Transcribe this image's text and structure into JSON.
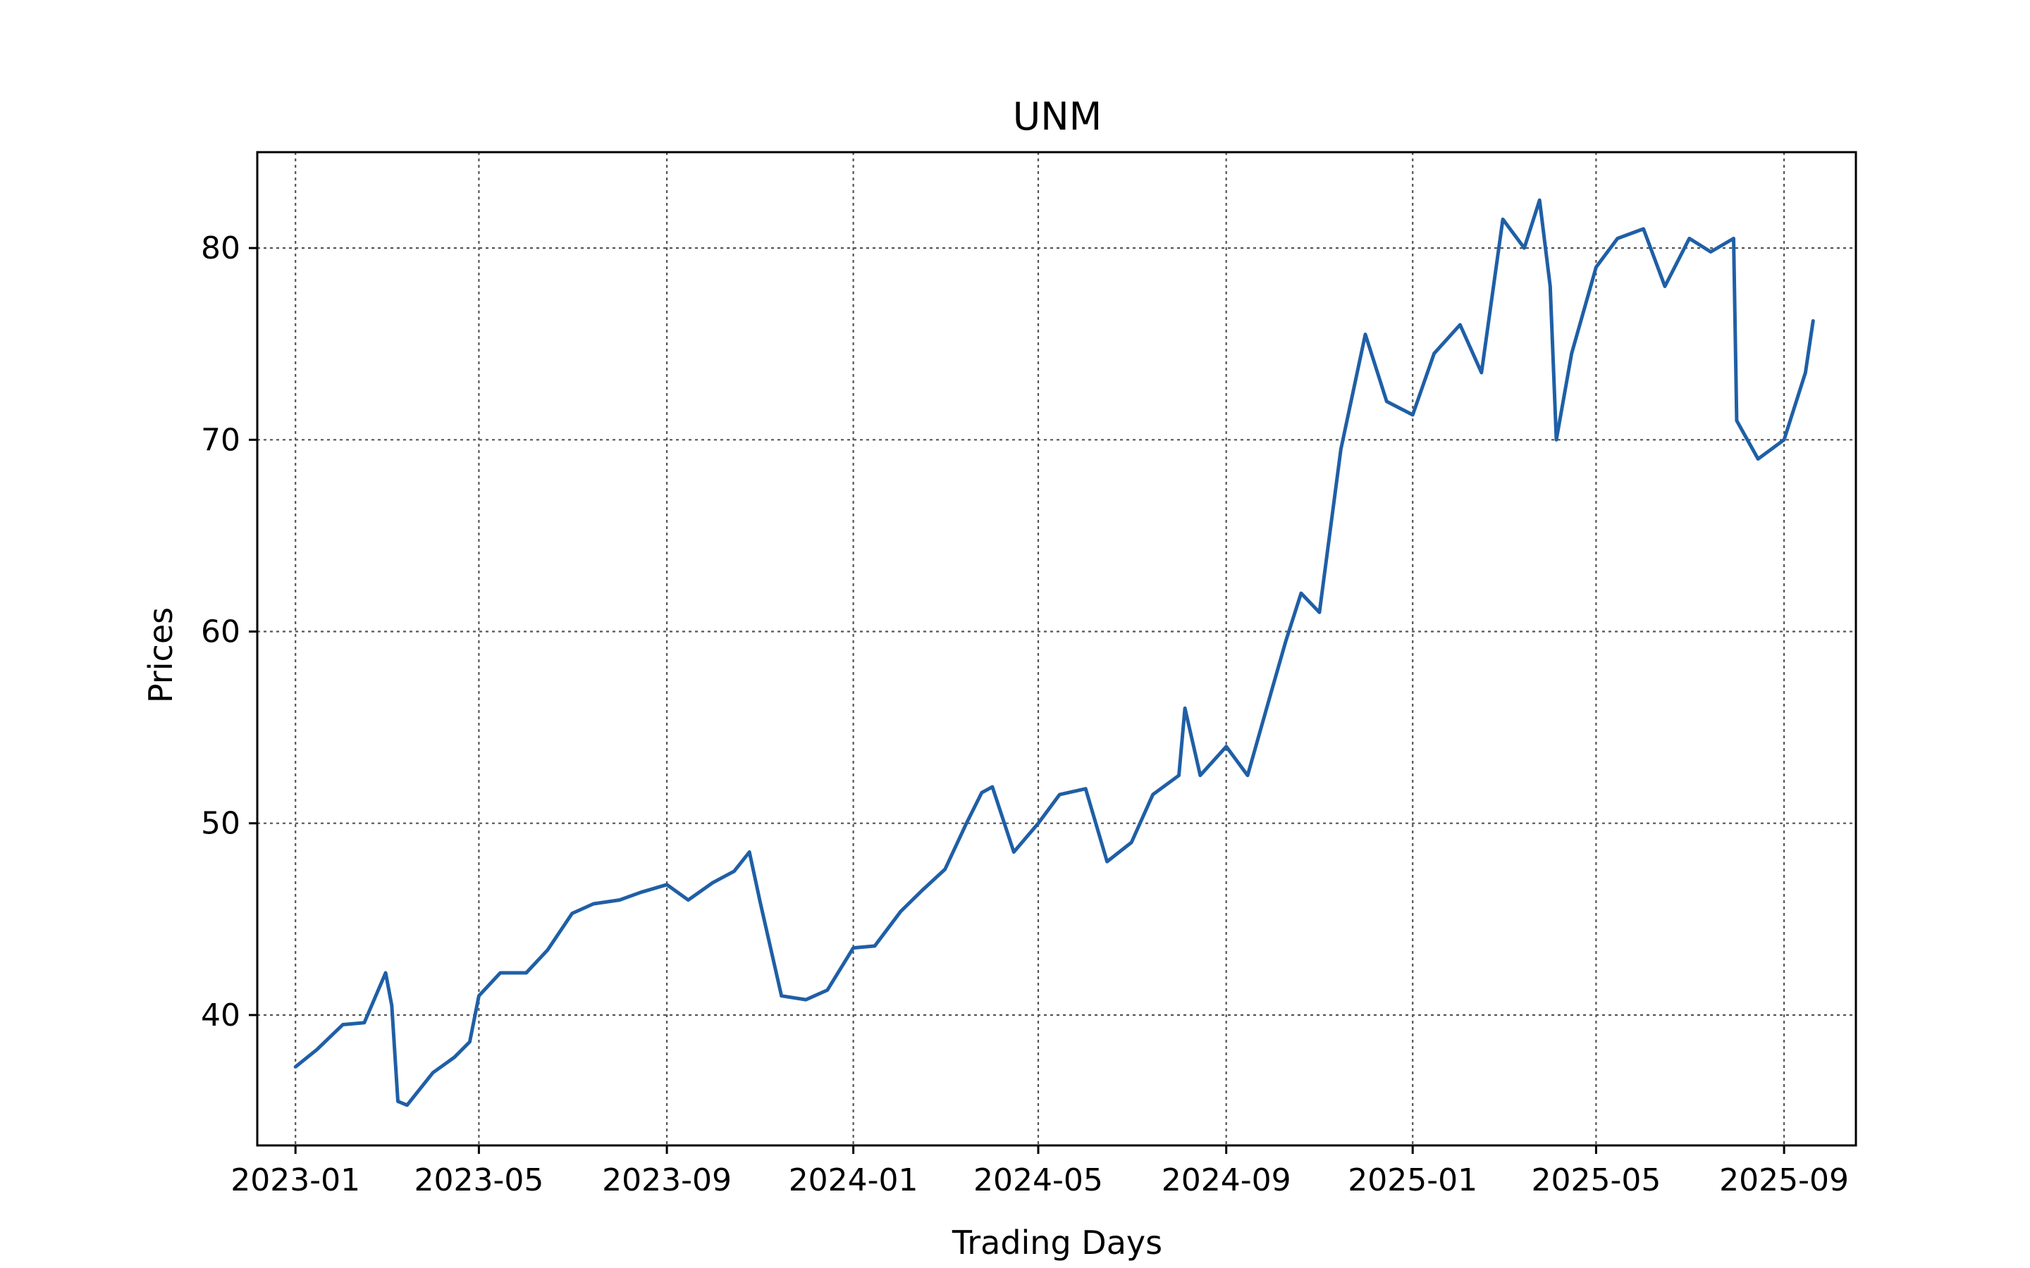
{
  "chart_data": {
    "type": "line",
    "title": "UNM",
    "xlabel": "Trading Days",
    "ylabel": "Prices",
    "x_ticks": [
      "2023-01",
      "2023-05",
      "2023-09",
      "2024-01",
      "2024-05",
      "2024-09",
      "2025-01",
      "2025-05",
      "2025-09"
    ],
    "y_ticks": [
      40,
      50,
      60,
      70,
      80
    ],
    "ylim": [
      33.2,
      85.0
    ],
    "xlim": [
      "2022-12-07",
      "2025-10-18"
    ],
    "grid": true,
    "line_color": "#1f5fa6",
    "series": [
      {
        "x": [
          "2023-01-01",
          "2023-01-15",
          "2023-02-01",
          "2023-02-15",
          "2023-03-01",
          "2023-03-05",
          "2023-03-09",
          "2023-03-15",
          "2023-04-01",
          "2023-04-15",
          "2023-04-25",
          "2023-05-01",
          "2023-05-15",
          "2023-06-01",
          "2023-06-15",
          "2023-07-01",
          "2023-07-15",
          "2023-08-01",
          "2023-08-15",
          "2023-09-01",
          "2023-09-15",
          "2023-10-01",
          "2023-10-15",
          "2023-10-25",
          "2023-11-01",
          "2023-11-15",
          "2023-12-01",
          "2023-12-15",
          "2024-01-01",
          "2024-01-15",
          "2024-02-01",
          "2024-02-15",
          "2024-03-01",
          "2024-03-15",
          "2024-03-25",
          "2024-04-01",
          "2024-04-15",
          "2024-05-01",
          "2024-05-15",
          "2024-06-01",
          "2024-06-15",
          "2024-07-01",
          "2024-07-15",
          "2024-08-01",
          "2024-08-05",
          "2024-08-15",
          "2024-09-01",
          "2024-09-15",
          "2024-10-01",
          "2024-10-10",
          "2024-10-20",
          "2024-11-01",
          "2024-11-15",
          "2024-12-01",
          "2024-12-15",
          "2025-01-01",
          "2025-01-15",
          "2025-02-01",
          "2025-02-15",
          "2025-03-01",
          "2025-03-15",
          "2025-03-25",
          "2025-04-01",
          "2025-04-05",
          "2025-04-15",
          "2025-05-01",
          "2025-05-15",
          "2025-06-01",
          "2025-06-15",
          "2025-07-01",
          "2025-07-15",
          "2025-07-30",
          "2025-08-01",
          "2025-08-15",
          "2025-09-01",
          "2025-09-15",
          "2025-09-20"
        ],
        "values": [
          37.3,
          38.2,
          39.5,
          39.6,
          42.2,
          40.5,
          35.5,
          35.3,
          37.0,
          37.8,
          38.6,
          41.0,
          42.2,
          42.2,
          43.4,
          45.3,
          45.8,
          46.0,
          46.4,
          46.8,
          46.0,
          46.9,
          47.5,
          48.5,
          45.9,
          41.0,
          40.8,
          41.3,
          43.5,
          43.6,
          45.4,
          46.5,
          47.6,
          50.0,
          51.6,
          51.9,
          48.5,
          50.0,
          51.5,
          51.8,
          48.0,
          49.0,
          51.5,
          52.5,
          56.0,
          52.5,
          54.0,
          52.5,
          57.0,
          59.5,
          62.0,
          61.0,
          69.5,
          75.5,
          72.0,
          71.3,
          74.5,
          76.0,
          73.5,
          81.5,
          80.0,
          82.5,
          78.0,
          70.0,
          74.5,
          79.0,
          80.5,
          81.0,
          78.0,
          80.5,
          79.8,
          80.5,
          71.0,
          69.0,
          70.0,
          73.5,
          76.2
        ]
      }
    ]
  }
}
